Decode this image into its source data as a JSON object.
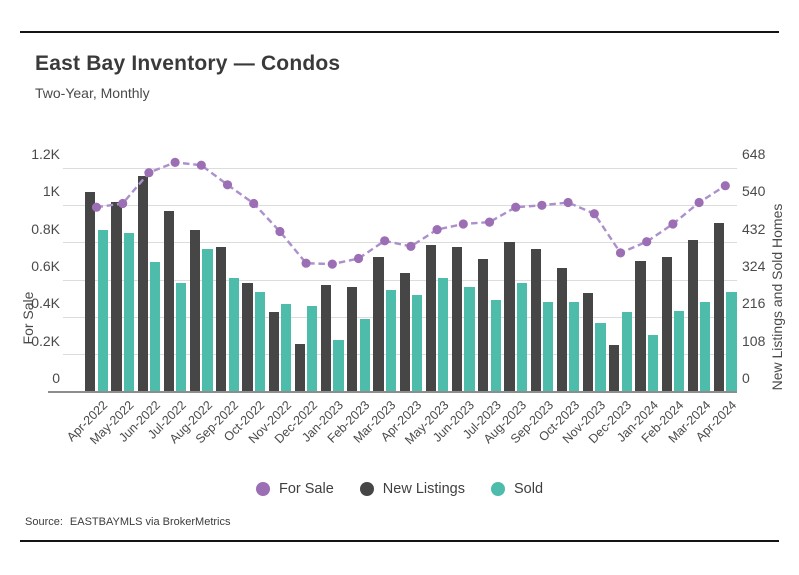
{
  "header": {
    "title": "East Bay Inventory — Condos",
    "subtitle": "Two-Year, Monthly"
  },
  "footer": {
    "source_label": "Source:",
    "source_text": "EASTBAYMLS via BrokerMetrics"
  },
  "chart_data": {
    "type": "bar",
    "subtype": "grouped-bars-with-line-overlay-dual-axis",
    "categories": [
      "Apr-2022",
      "May-2022",
      "Jun-2022",
      "Jul-2022",
      "Aug-2022",
      "Sep-2022",
      "Oct-2022",
      "Nov-2022",
      "Dec-2022",
      "Jan-2023",
      "Feb-2023",
      "Mar-2023",
      "Apr-2023",
      "May-2023",
      "Jun-2023",
      "Jul-2023",
      "Aug-2023",
      "Sep-2023",
      "Oct-2023",
      "Nov-2023",
      "Dec-2023",
      "Jan-2024",
      "Feb-2024",
      "Mar-2024",
      "Apr-2024"
    ],
    "series": [
      {
        "name": "For Sale",
        "kind": "line",
        "axis": "left",
        "color": "#9c6fb5",
        "line_color": "#ab90cc",
        "values": [
          990,
          1010,
          1175,
          1230,
          1215,
          1110,
          1010,
          860,
          690,
          685,
          715,
          810,
          780,
          870,
          900,
          910,
          990,
          1000,
          1015,
          955,
          745,
          805,
          900,
          1015,
          1105
        ]
      },
      {
        "name": "New Listings",
        "kind": "bar",
        "axis": "right",
        "color": "#464646",
        "values": [
          580,
          550,
          625,
          525,
          470,
          420,
          315,
          230,
          140,
          310,
          305,
          390,
          345,
          425,
          420,
          385,
          435,
          415,
          360,
          285,
          135,
          380,
          390,
          440,
          490
        ]
      },
      {
        "name": "Sold",
        "kind": "bar",
        "axis": "right",
        "color": "#4dbcab",
        "values": [
          470,
          460,
          375,
          315,
          415,
          330,
          290,
          255,
          250,
          150,
          210,
          295,
          280,
          330,
          305,
          265,
          315,
          260,
          260,
          200,
          230,
          165,
          235,
          260,
          290
        ]
      }
    ],
    "left_axis": {
      "title": "For Sale",
      "min": 0,
      "max": 1200,
      "tick_values": [
        0,
        200,
        400,
        600,
        800,
        1000,
        1200
      ],
      "tick_labels": [
        "0",
        "0.2K",
        "0.4K",
        "0.6K",
        "0.8K",
        "1K",
        "1.2K"
      ]
    },
    "right_axis": {
      "title": "New Listings and Sold Homes",
      "min": 0,
      "max": 648,
      "tick_values": [
        0,
        108,
        216,
        324,
        432,
        540,
        648
      ],
      "tick_labels": [
        "0",
        "108",
        "216",
        "324",
        "432",
        "540",
        "648"
      ]
    },
    "grid": "horizontal",
    "legend_position": "bottom"
  }
}
